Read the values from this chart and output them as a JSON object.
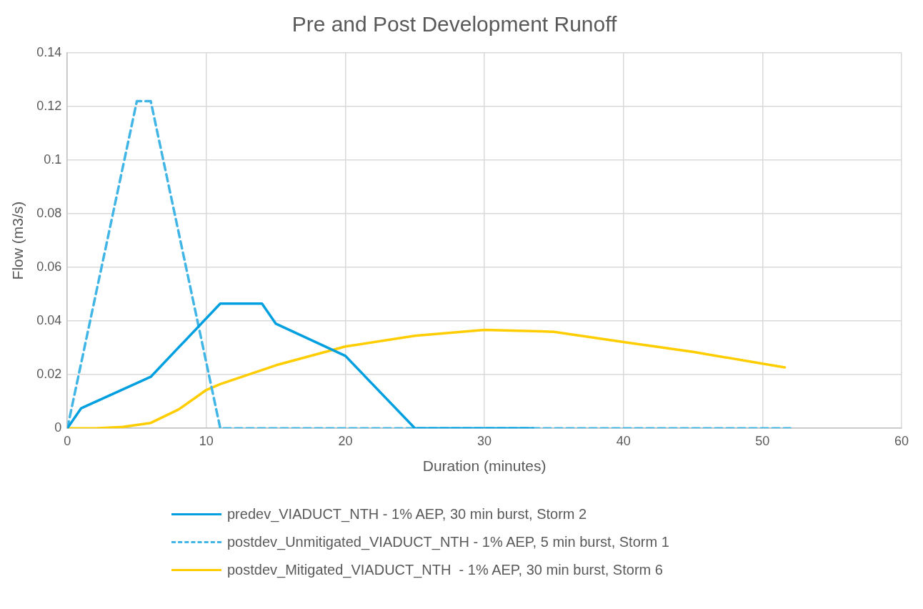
{
  "chart_data": {
    "type": "line",
    "title": "Pre and Post Development Runoff",
    "xlabel": "Duration (minutes)",
    "ylabel": "Flow (m3/s)",
    "xlim": [
      0,
      60
    ],
    "xticks": [
      0,
      10,
      20,
      30,
      40,
      50,
      60
    ],
    "ylim": [
      0,
      0.14
    ],
    "yticks": [
      0,
      0.02,
      0.04,
      0.06,
      0.08,
      0.1,
      0.12,
      0.14
    ],
    "grid": true,
    "legend": "bottom",
    "marker": "none",
    "series": [
      {
        "name": "predev_VIADUCT_NTH - 1% AEP, 30 min burst, Storm 2",
        "color": "#009fdf",
        "line_style": "solid",
        "x": [
          0,
          1,
          6,
          11,
          14,
          15,
          20,
          25,
          33.5
        ],
        "values": [
          0,
          0.0075,
          0.0192,
          0.0465,
          0.0465,
          0.039,
          0.027,
          0,
          0
        ]
      },
      {
        "name": "postdev_Unmitigated_VIADUCT_NTH - 1% AEP, 5 min burst, Storm 1",
        "color": "#41b6e6",
        "line_style": "dashed",
        "x": [
          0,
          5,
          6,
          11,
          52
        ],
        "values": [
          0,
          0.122,
          0.122,
          0,
          0
        ]
      },
      {
        "name": "postdev_Mitigated_VIADUCT_NTH  - 1% AEP, 30 min burst, Storm 6",
        "color": "#ffcd00",
        "line_style": "solid",
        "x": [
          0,
          2,
          4,
          6,
          8,
          10,
          11,
          15,
          20,
          25,
          30,
          35,
          40,
          45,
          51.6
        ],
        "values": [
          0,
          0,
          0.0005,
          0.002,
          0.007,
          0.0143,
          0.0165,
          0.0235,
          0.0305,
          0.0345,
          0.0367,
          0.036,
          0.0322,
          0.0285,
          0.0227
        ]
      }
    ]
  }
}
